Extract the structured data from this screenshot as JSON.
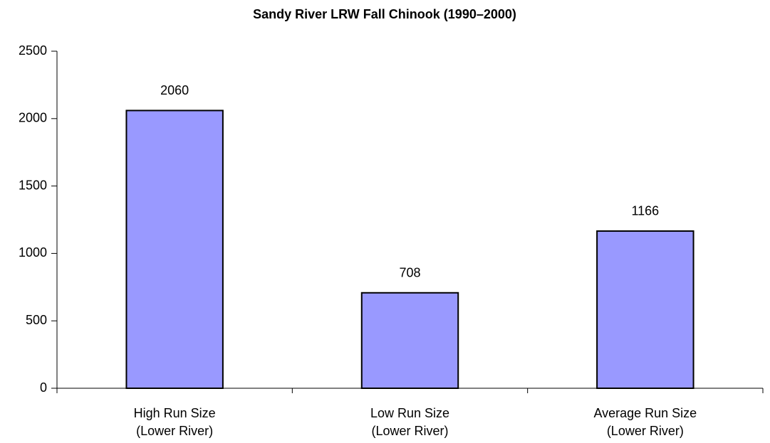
{
  "chart_data": {
    "type": "bar",
    "title": "Sandy River LRW Fall Chinook (1990–2000)",
    "categories": [
      "High Run Size\n(Lower River)",
      "Low Run Size\n(Lower River)",
      "Average Run Size\n(Lower River)"
    ],
    "values": [
      2060,
      708,
      1166
    ],
    "color": "#9999ff",
    "ylim": [
      0,
      2500
    ],
    "yticks": [
      0,
      500,
      1000,
      1500,
      2000,
      2500
    ],
    "grid": false
  }
}
